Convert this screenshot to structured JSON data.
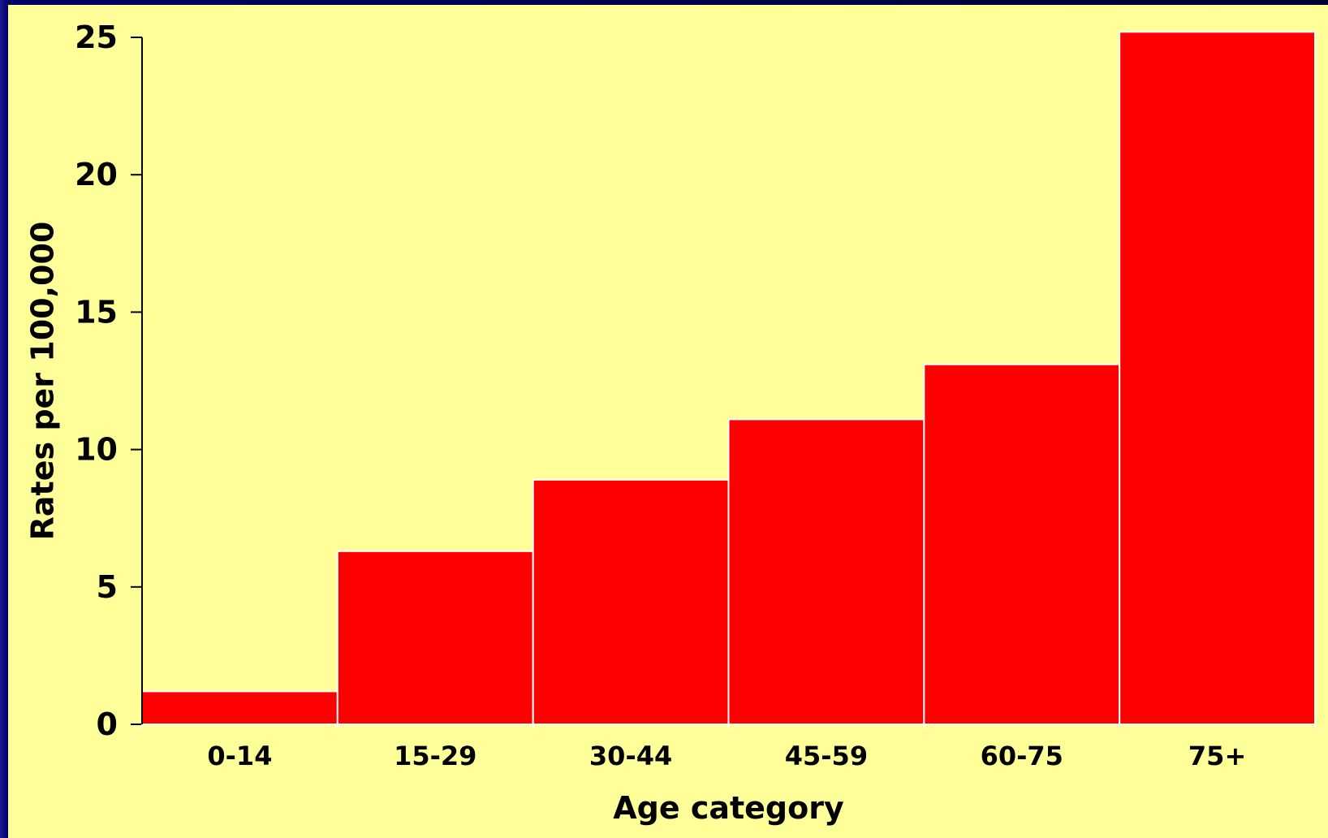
{
  "chart_data": {
    "type": "bar",
    "categories": [
      "0-14",
      "15-29",
      "30-44",
      "45-59",
      "60-75",
      "75+"
    ],
    "values": [
      1.2,
      6.3,
      8.9,
      11.1,
      13.1,
      25.2
    ],
    "title": "",
    "xlabel": "Age category",
    "ylabel": "Rates per 100,000",
    "ylim": [
      0,
      25
    ],
    "yticks": [
      "0",
      "5",
      "10",
      "15",
      "20",
      "25"
    ],
    "grid": false,
    "legend": "none",
    "bar_color": "#ff0000",
    "bar_edge_color": "#ffffff",
    "background_color": "#ffff99"
  }
}
